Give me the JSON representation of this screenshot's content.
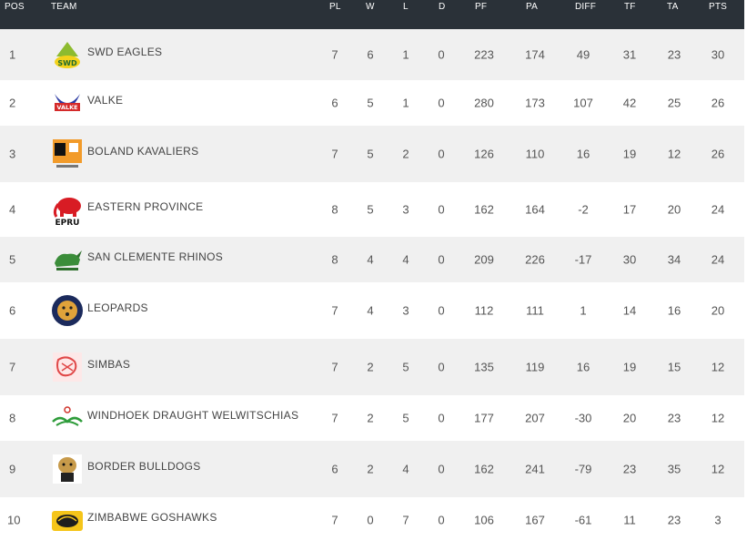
{
  "headers": {
    "pos": "POS",
    "team": "TEAM",
    "pl": "PL",
    "w": "W",
    "l": "L",
    "d": "D",
    "pf": "PF",
    "pa": "PA",
    "diff": "DIFF",
    "tf": "TF",
    "ta": "TA",
    "pts": "PTS"
  },
  "rows": [
    {
      "pos": "1",
      "team": "SWD EAGLES",
      "logo": "swd-eagles-logo",
      "pl": "7",
      "w": "6",
      "l": "1",
      "d": "0",
      "pf": "223",
      "pa": "174",
      "diff": "49",
      "tf": "31",
      "ta": "23",
      "pts": "30"
    },
    {
      "pos": "2",
      "team": "VALKE",
      "logo": "valke-logo",
      "pl": "6",
      "w": "5",
      "l": "1",
      "d": "0",
      "pf": "280",
      "pa": "173",
      "diff": "107",
      "tf": "42",
      "ta": "25",
      "pts": "26"
    },
    {
      "pos": "3",
      "team": "BOLAND KAVALIERS",
      "logo": "boland-kavaliers-logo",
      "pl": "7",
      "w": "5",
      "l": "2",
      "d": "0",
      "pf": "126",
      "pa": "110",
      "diff": "16",
      "tf": "19",
      "ta": "12",
      "pts": "26"
    },
    {
      "pos": "4",
      "team": "EASTERN PROVINCE",
      "logo": "eastern-province-logo",
      "pl": "8",
      "w": "5",
      "l": "3",
      "d": "0",
      "pf": "162",
      "pa": "164",
      "diff": "-2",
      "tf": "17",
      "ta": "20",
      "pts": "24"
    },
    {
      "pos": "5",
      "team": "SAN CLEMENTE RHINOS",
      "logo": "san-clemente-rhinos-logo",
      "pl": "8",
      "w": "4",
      "l": "4",
      "d": "0",
      "pf": "209",
      "pa": "226",
      "diff": "-17",
      "tf": "30",
      "ta": "34",
      "pts": "24"
    },
    {
      "pos": "6",
      "team": "LEOPARDS",
      "logo": "leopards-logo",
      "pl": "7",
      "w": "4",
      "l": "3",
      "d": "0",
      "pf": "112",
      "pa": "111",
      "diff": "1",
      "tf": "14",
      "ta": "16",
      "pts": "20"
    },
    {
      "pos": "7",
      "team": "SIMBAS",
      "logo": "simbas-logo",
      "pl": "7",
      "w": "2",
      "l": "5",
      "d": "0",
      "pf": "135",
      "pa": "119",
      "diff": "16",
      "tf": "19",
      "ta": "15",
      "pts": "12"
    },
    {
      "pos": "8",
      "team": "WINDHOEK DRAUGHT WELWITSCHIAS",
      "logo": "welwitschias-logo",
      "pl": "7",
      "w": "2",
      "l": "5",
      "d": "0",
      "pf": "177",
      "pa": "207",
      "diff": "-30",
      "tf": "20",
      "ta": "23",
      "pts": "12"
    },
    {
      "pos": "9",
      "team": "BORDER BULLDOGS",
      "logo": "border-bulldogs-logo",
      "pl": "6",
      "w": "2",
      "l": "4",
      "d": "0",
      "pf": "162",
      "pa": "241",
      "diff": "-79",
      "tf": "23",
      "ta": "35",
      "pts": "12"
    },
    {
      "pos": "10",
      "team": "ZIMBABWE GOSHAWKS",
      "logo": "zimbabwe-goshawks-logo",
      "pl": "7",
      "w": "0",
      "l": "7",
      "d": "0",
      "pf": "106",
      "pa": "167",
      "diff": "-61",
      "tf": "11",
      "ta": "23",
      "pts": "3"
    }
  ],
  "logo_texts": {
    "swd": "SWD",
    "valke": "VALKE",
    "ep": "EPRU"
  },
  "colors": {
    "header_bg": "#2a3138",
    "row_alt": "#f0f0f0",
    "text": "#555555"
  }
}
